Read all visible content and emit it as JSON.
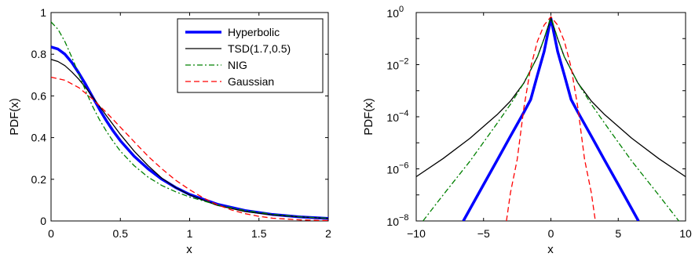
{
  "chart_data": [
    {
      "type": "line",
      "xlabel": "x",
      "ylabel": "PDF(x)",
      "xlim": [
        0,
        2
      ],
      "ylim": [
        0,
        1
      ],
      "x_ticks": [
        "0",
        "0.5",
        "1",
        "1.5",
        "2"
      ],
      "y_ticks": [
        "0",
        "0.2",
        "0.4",
        "0.6",
        "0.8",
        "1"
      ],
      "legend_position": "top-right",
      "series": [
        {
          "name": "Hyperbolic",
          "color": "#0000ff",
          "style": "solid-thick",
          "x": [
            0,
            0.05,
            0.1,
            0.15,
            0.2,
            0.25,
            0.3,
            0.35,
            0.4,
            0.45,
            0.5,
            0.6,
            0.7,
            0.8,
            0.9,
            1.0,
            1.2,
            1.4,
            1.6,
            1.8,
            2.0
          ],
          "y": [
            0.835,
            0.825,
            0.8,
            0.76,
            0.71,
            0.655,
            0.595,
            0.535,
            0.48,
            0.43,
            0.385,
            0.31,
            0.25,
            0.2,
            0.16,
            0.127,
            0.08,
            0.05,
            0.031,
            0.019,
            0.012
          ]
        },
        {
          "name": "TSD(1.7,0.5)",
          "color": "#000000",
          "style": "solid",
          "x": [
            0,
            0.05,
            0.1,
            0.15,
            0.2,
            0.25,
            0.3,
            0.35,
            0.4,
            0.45,
            0.5,
            0.6,
            0.7,
            0.8,
            0.9,
            1.0,
            1.2,
            1.4,
            1.6,
            1.8,
            2.0
          ],
          "y": [
            0.775,
            0.765,
            0.745,
            0.715,
            0.68,
            0.64,
            0.595,
            0.55,
            0.505,
            0.46,
            0.415,
            0.335,
            0.265,
            0.205,
            0.16,
            0.125,
            0.075,
            0.045,
            0.029,
            0.019,
            0.012
          ]
        },
        {
          "name": "NIG",
          "color": "#008000",
          "style": "dash-dot",
          "x": [
            0,
            0.05,
            0.1,
            0.15,
            0.2,
            0.25,
            0.3,
            0.35,
            0.4,
            0.45,
            0.5,
            0.6,
            0.7,
            0.8,
            0.9,
            1.0,
            1.2,
            1.4,
            1.6,
            1.8,
            2.0
          ],
          "y": [
            0.955,
            0.92,
            0.86,
            0.785,
            0.705,
            0.625,
            0.55,
            0.485,
            0.43,
            0.38,
            0.335,
            0.265,
            0.21,
            0.17,
            0.14,
            0.115,
            0.077,
            0.05,
            0.032,
            0.02,
            0.013
          ]
        },
        {
          "name": "Gaussian",
          "color": "#ff0000",
          "style": "dashed",
          "x": [
            0,
            0.1,
            0.2,
            0.3,
            0.4,
            0.5,
            0.6,
            0.7,
            0.8,
            0.9,
            1.0,
            1.1,
            1.2,
            1.3,
            1.4,
            1.5,
            1.6,
            1.8,
            2.0
          ],
          "y": [
            0.69,
            0.675,
            0.64,
            0.585,
            0.52,
            0.45,
            0.38,
            0.31,
            0.25,
            0.195,
            0.15,
            0.11,
            0.078,
            0.053,
            0.035,
            0.022,
            0.013,
            0.005,
            0.002
          ]
        }
      ]
    },
    {
      "type": "line",
      "xlabel": "x",
      "ylabel": "PDF(x)",
      "xlim": [
        -10,
        10
      ],
      "ylim": [
        1e-08,
        1
      ],
      "y_scale": "log",
      "x_ticks": [
        "−10",
        "−5",
        "0",
        "5",
        "10"
      ],
      "y_ticks_exponent": [
        "−8",
        "−6",
        "−4",
        "−2",
        "0"
      ],
      "y_ticks_base": "10",
      "series": [
        {
          "name": "Hyperbolic",
          "color": "#0000ff",
          "style": "solid-thick",
          "x": [
            -6.5,
            -5,
            -4,
            -3,
            -2,
            -1.5,
            -1,
            -0.5,
            0,
            0.5,
            1,
            1.5,
            2,
            3,
            4,
            5,
            6.5
          ],
          "y": [
            1e-08,
            2.5e-07,
            2.1e-06,
            1.8e-05,
            0.00015,
            0.00046,
            0.004,
            0.032,
            0.6,
            0.032,
            0.004,
            0.00046,
            0.00015,
            1.8e-05,
            2.1e-06,
            2.5e-07,
            1e-08
          ]
        },
        {
          "name": "TSD(1.7,0.5)",
          "color": "#000000",
          "style": "solid",
          "x": [
            -10,
            -8,
            -6,
            -4,
            -3,
            -2,
            -1,
            -0.5,
            0,
            0.5,
            1,
            2,
            3,
            4,
            6,
            8,
            10
          ],
          "y": [
            5e-07,
            2.5e-06,
            1.5e-05,
            0.00012,
            0.0004,
            0.002,
            0.02,
            0.1,
            0.6,
            0.1,
            0.02,
            0.002,
            0.0004,
            0.00012,
            1.5e-05,
            2.5e-06,
            5e-07
          ]
        },
        {
          "name": "NIG",
          "color": "#008000",
          "style": "dash-dot",
          "x": [
            -9.5,
            -8,
            -6,
            -4,
            -3,
            -2,
            -1,
            -0.5,
            0,
            0.5,
            1,
            2,
            3,
            4,
            6,
            8,
            9.5
          ],
          "y": [
            1e-08,
            1e-07,
            2e-06,
            5.5e-05,
            0.0003,
            0.002,
            0.02,
            0.1,
            0.7,
            0.1,
            0.02,
            0.002,
            0.0003,
            5.5e-05,
            2e-06,
            1e-07,
            1e-08
          ]
        },
        {
          "name": "Gaussian",
          "color": "#ff0000",
          "style": "dashed",
          "x": [
            -3.3,
            -3,
            -2.5,
            -2,
            -1.5,
            -1,
            -0.5,
            0,
            0.5,
            1,
            1.5,
            2,
            2.5,
            3,
            3.3
          ],
          "y": [
            1e-08,
            1.2e-07,
            2.3e-06,
            0.00023,
            0.008,
            0.08,
            0.33,
            0.69,
            0.33,
            0.08,
            0.008,
            0.00023,
            2.3e-06,
            1.2e-07,
            1e-08
          ]
        }
      ]
    }
  ]
}
